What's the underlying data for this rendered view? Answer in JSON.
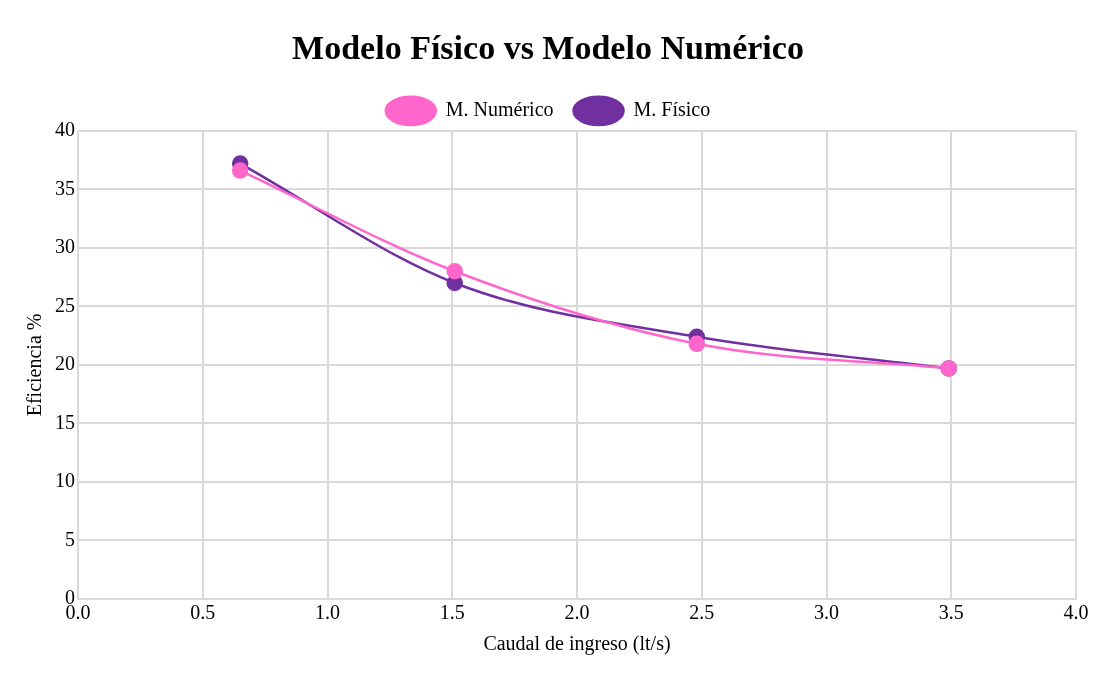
{
  "chart_data": {
    "type": "line",
    "title": "Modelo Físico vs Modelo Numérico",
    "xlabel": "Caudal de ingreso (lt/s)",
    "ylabel": "Eficiencia %",
    "xlim": [
      0,
      4
    ],
    "xticks": [
      {
        "value": 0,
        "label": "0.0"
      },
      {
        "value": 0.5,
        "label": "0.5"
      },
      {
        "value": 1,
        "label": "1.0"
      },
      {
        "value": 1.5,
        "label": "1.5"
      },
      {
        "value": 2,
        "label": "2.0"
      },
      {
        "value": 2.5,
        "label": "2.5"
      },
      {
        "value": 3,
        "label": "3.0"
      },
      {
        "value": 3.5,
        "label": "3.5"
      },
      {
        "value": 4,
        "label": "4.0"
      }
    ],
    "ylim": [
      0,
      40
    ],
    "yticks": [
      0,
      5,
      10,
      15,
      20,
      25,
      30,
      35,
      40
    ],
    "grid": true,
    "legend": "top",
    "marker": "circle",
    "line_style": "solid",
    "series": [
      {
        "name": "M. Físico",
        "color": "#7030a0",
        "x": [
          0.65,
          1.51,
          2.48,
          3.49
        ],
        "values": [
          37.2,
          27.0,
          22.4,
          19.7
        ]
      },
      {
        "name": "M. Numérico",
        "color": "#ff66cc",
        "x": [
          0.65,
          1.51,
          2.48,
          3.49
        ],
        "values": [
          36.6,
          28.0,
          21.8,
          19.7
        ]
      }
    ]
  }
}
